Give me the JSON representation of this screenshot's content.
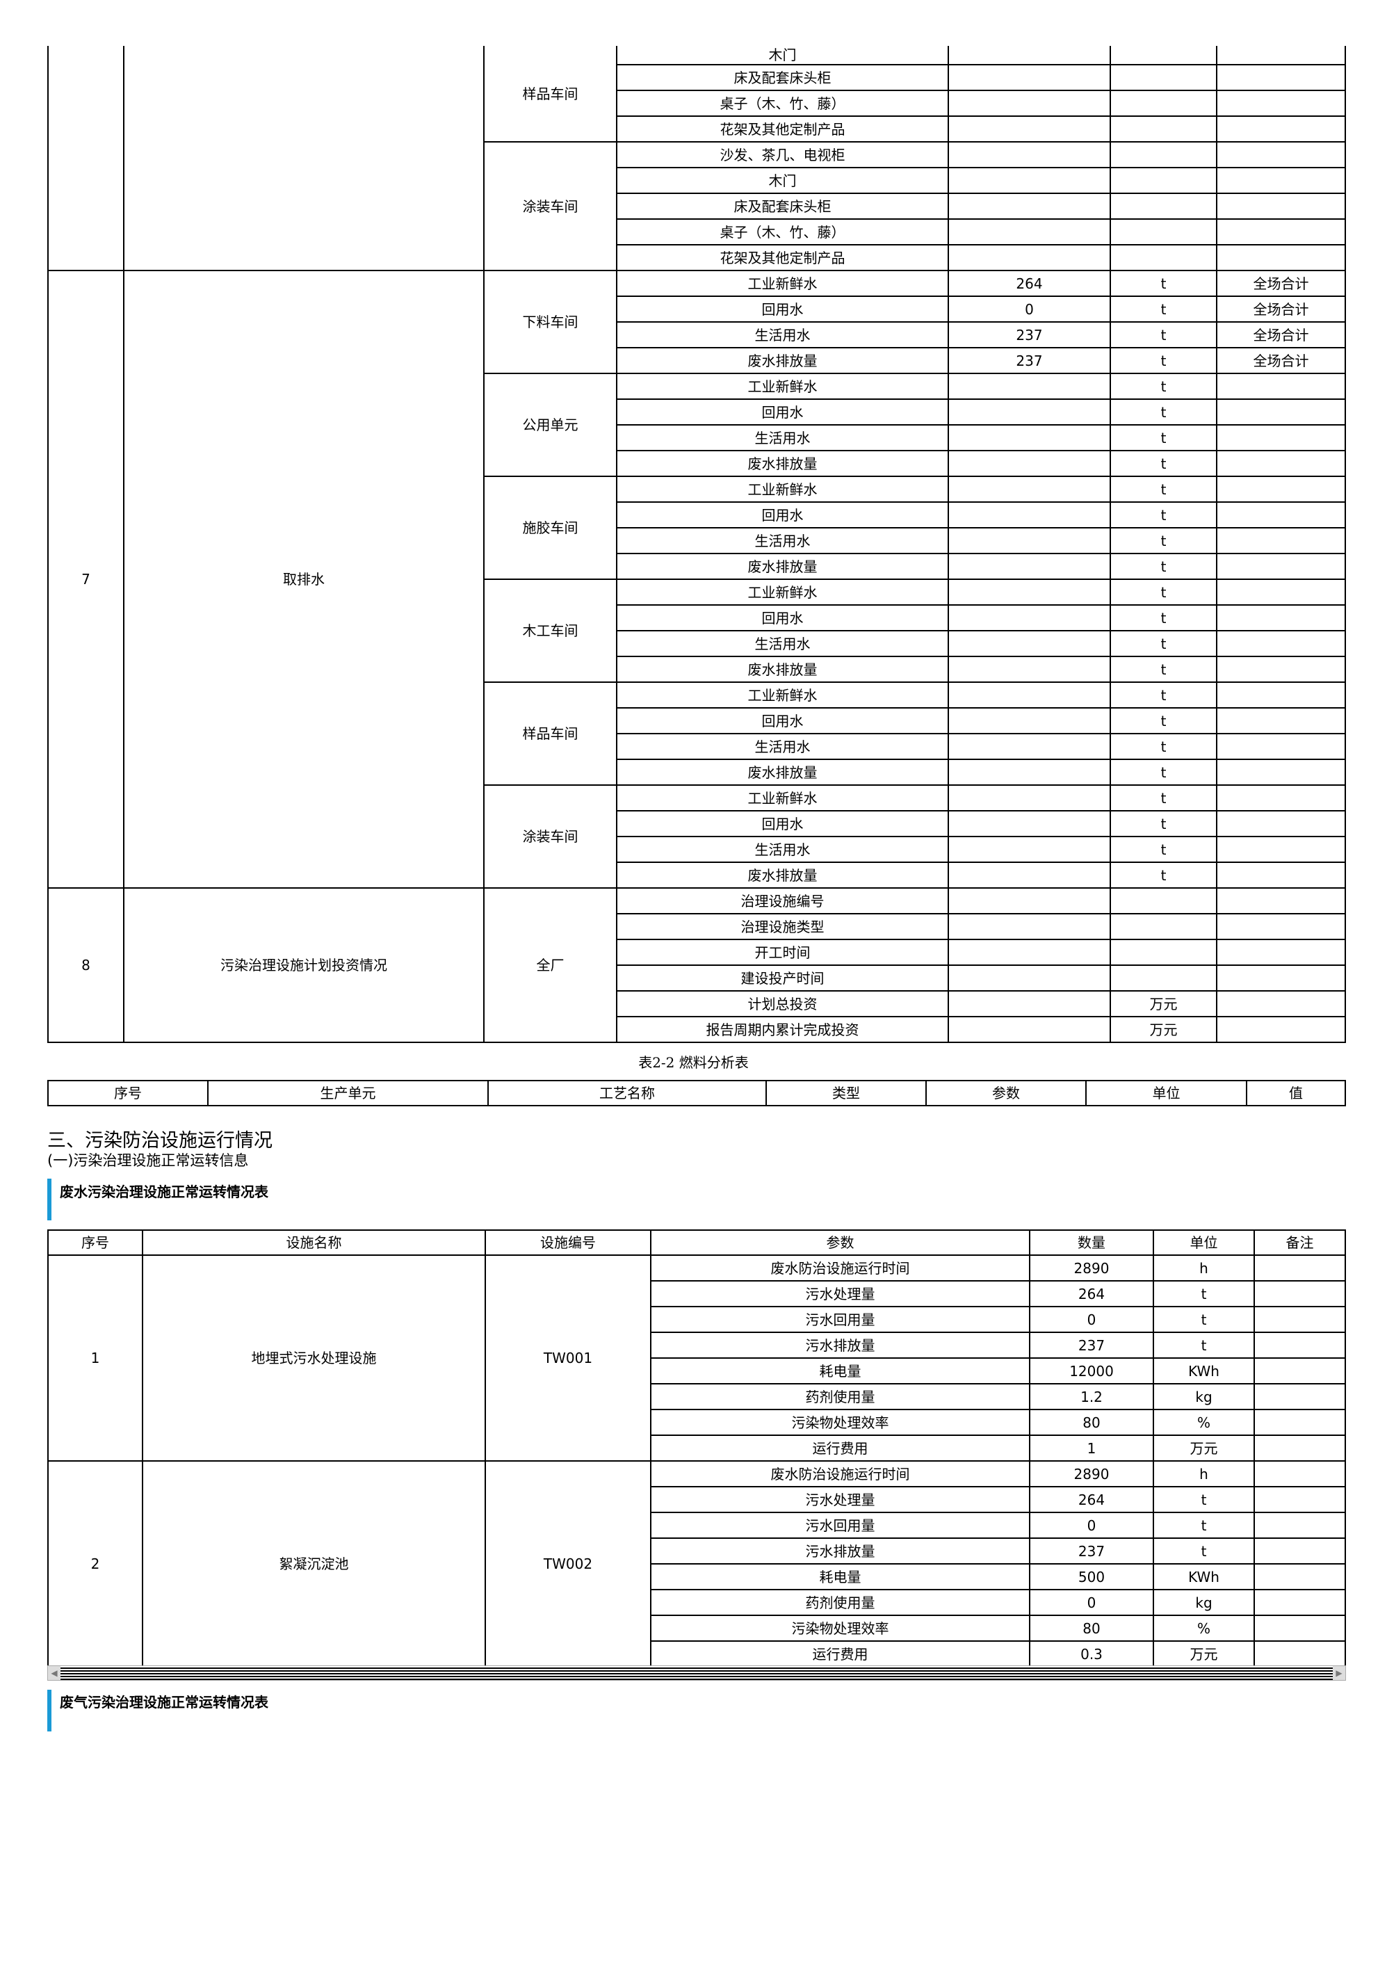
{
  "table1": {
    "sections": [
      {
        "no": "",
        "item": "",
        "partial": true,
        "units": [
          {
            "name": "样品车间",
            "rows": [
              {
                "param": "木门"
              },
              {
                "param": "床及配套床头柜"
              },
              {
                "param": "桌子（木、竹、藤）"
              },
              {
                "param": "花架及其他定制产品"
              }
            ]
          },
          {
            "name": "涂装车间",
            "rows": [
              {
                "param": "沙发、茶几、电视柜"
              },
              {
                "param": "木门"
              },
              {
                "param": "床及配套床头柜"
              },
              {
                "param": "桌子（木、竹、藤）"
              },
              {
                "param": "花架及其他定制产品"
              }
            ]
          }
        ]
      },
      {
        "no": "7",
        "item": "取排水",
        "units": [
          {
            "name": "下料车间",
            "rows": [
              {
                "param": "工业新鲜水",
                "value": "264",
                "unit": "t",
                "note": "全场合计"
              },
              {
                "param": "回用水",
                "value": "0",
                "unit": "t",
                "note": "全场合计"
              },
              {
                "param": "生活用水",
                "value": "237",
                "unit": "t",
                "note": "全场合计"
              },
              {
                "param": "废水排放量",
                "value": "237",
                "unit": "t",
                "note": "全场合计"
              }
            ]
          },
          {
            "name": "公用单元",
            "rows": [
              {
                "param": "工业新鲜水",
                "unit": "t"
              },
              {
                "param": "回用水",
                "unit": "t"
              },
              {
                "param": "生活用水",
                "unit": "t"
              },
              {
                "param": "废水排放量",
                "unit": "t"
              }
            ]
          },
          {
            "name": "施胶车间",
            "rows": [
              {
                "param": "工业新鲜水",
                "unit": "t"
              },
              {
                "param": "回用水",
                "unit": "t"
              },
              {
                "param": "生活用水",
                "unit": "t"
              },
              {
                "param": "废水排放量",
                "unit": "t"
              }
            ]
          },
          {
            "name": "木工车间",
            "rows": [
              {
                "param": "工业新鲜水",
                "unit": "t"
              },
              {
                "param": "回用水",
                "unit": "t"
              },
              {
                "param": "生活用水",
                "unit": "t"
              },
              {
                "param": "废水排放量",
                "unit": "t"
              }
            ]
          },
          {
            "name": "样品车间",
            "rows": [
              {
                "param": "工业新鲜水",
                "unit": "t"
              },
              {
                "param": "回用水",
                "unit": "t"
              },
              {
                "param": "生活用水",
                "unit": "t"
              },
              {
                "param": "废水排放量",
                "unit": "t"
              }
            ]
          },
          {
            "name": "涂装车间",
            "rows": [
              {
                "param": "工业新鲜水",
                "unit": "t"
              },
              {
                "param": "回用水",
                "unit": "t"
              },
              {
                "param": "生活用水",
                "unit": "t"
              },
              {
                "param": "废水排放量",
                "unit": "t"
              }
            ]
          }
        ]
      },
      {
        "no": "8",
        "item": "污染治理设施计划投资情况",
        "units": [
          {
            "name": "全厂",
            "rows": [
              {
                "param": "治理设施编号"
              },
              {
                "param": "治理设施类型"
              },
              {
                "param": "开工时间"
              },
              {
                "param": "建设投产时间"
              },
              {
                "param": "计划总投资",
                "unit": "万元"
              },
              {
                "param": "报告周期内累计完成投资",
                "unit": "万元"
              }
            ]
          }
        ]
      }
    ]
  },
  "fuel_caption": "表2-2 燃料分析表",
  "fuel_headers": [
    "序号",
    "生产单元",
    "工艺名称",
    "类型",
    "参数",
    "单位",
    "值"
  ],
  "section_title": "三、污染防治设施运行情况",
  "subsection_title": "(一)污染治理设施正常运转信息",
  "wastewater_title": "废水污染治理设施正常运转情况表",
  "wastewater_headers": [
    "序号",
    "设施名称",
    "设施编号",
    "参数",
    "数量",
    "单位",
    "备注"
  ],
  "wastewater": [
    {
      "no": "1",
      "name": "地埋式污水处理设施",
      "code": "TW001",
      "rows": [
        {
          "param": "废水防治设施运行时间",
          "qty": "2890",
          "unit": "h"
        },
        {
          "param": "污水处理量",
          "qty": "264",
          "unit": "t"
        },
        {
          "param": "污水回用量",
          "qty": "0",
          "unit": "t"
        },
        {
          "param": "污水排放量",
          "qty": "237",
          "unit": "t"
        },
        {
          "param": "耗电量",
          "qty": "12000",
          "unit": "KWh"
        },
        {
          "param": "药剂使用量",
          "qty": "1.2",
          "unit": "kg"
        },
        {
          "param": "污染物处理效率",
          "qty": "80",
          "unit": "%"
        },
        {
          "param": "运行费用",
          "qty": "1",
          "unit": "万元"
        }
      ]
    },
    {
      "no": "2",
      "name": "絮凝沉淀池",
      "code": "TW002",
      "rows": [
        {
          "param": "废水防治设施运行时间",
          "qty": "2890",
          "unit": "h"
        },
        {
          "param": "污水处理量",
          "qty": "264",
          "unit": "t"
        },
        {
          "param": "污水回用量",
          "qty": "0",
          "unit": "t"
        },
        {
          "param": "污水排放量",
          "qty": "237",
          "unit": "t"
        },
        {
          "param": "耗电量",
          "qty": "500",
          "unit": "KWh"
        },
        {
          "param": "药剂使用量",
          "qty": "0",
          "unit": "kg"
        },
        {
          "param": "污染物处理效率",
          "qty": "80",
          "unit": "%"
        },
        {
          "param": "运行费用",
          "qty": "0.3",
          "unit": "万元"
        }
      ]
    }
  ],
  "waste_gas_title": "废气污染治理设施正常运转情况表",
  "colors": {
    "accent_bar": "#1a9ad6"
  }
}
